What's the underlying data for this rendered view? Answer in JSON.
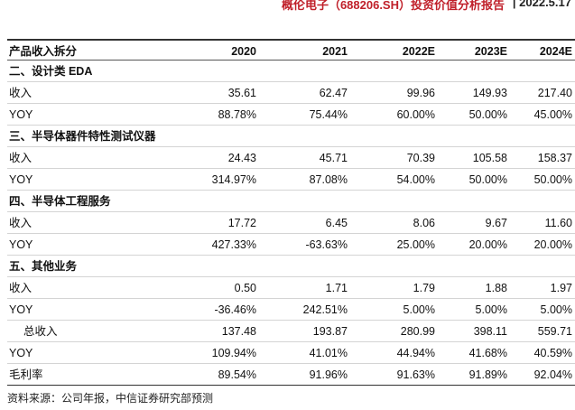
{
  "header": {
    "title": "概伦电子（688206.SH）投资价值分析报告",
    "date": "| 2022.5.17"
  },
  "table": {
    "columns": [
      "产品收入拆分",
      "2020",
      "2021",
      "2022E",
      "2023E",
      "2024E"
    ],
    "rows": [
      [
        "二、设计类 EDA"
      ],
      [
        "收入",
        "35.61",
        "62.47",
        "99.96",
        "149.93",
        "217.40"
      ],
      [
        "YOY",
        "88.78%",
        "75.44%",
        "60.00%",
        "50.00%",
        "45.00%"
      ],
      [
        "三、半导体器件特性测试仪器"
      ],
      [
        "收入",
        "24.43",
        "45.71",
        "70.39",
        "105.58",
        "158.37"
      ],
      [
        "YOY",
        "314.97%",
        "87.08%",
        "54.00%",
        "50.00%",
        "50.00%"
      ],
      [
        "四、半导体工程服务"
      ],
      [
        "收入",
        "17.72",
        "6.45",
        "8.06",
        "9.67",
        "11.60"
      ],
      [
        "YOY",
        "427.33%",
        "-63.63%",
        "25.00%",
        "20.00%",
        "20.00%"
      ],
      [
        "五、其他业务"
      ],
      [
        "收入",
        "0.50",
        "1.71",
        "1.79",
        "1.88",
        "1.97"
      ],
      [
        "YOY",
        "-36.46%",
        "242.51%",
        "5.00%",
        "5.00%",
        "5.00%"
      ],
      [
        "总收入",
        "137.48",
        "193.87",
        "280.99",
        "398.11",
        "559.71"
      ],
      [
        "YOY",
        "109.94%",
        "41.01%",
        "44.94%",
        "41.68%",
        "40.59%"
      ],
      [
        "毛利率",
        "89.54%",
        "91.96%",
        "91.63%",
        "91.89%",
        "92.04%"
      ]
    ]
  },
  "source": "资料来源：公司年报，中信证券研究部预测"
}
